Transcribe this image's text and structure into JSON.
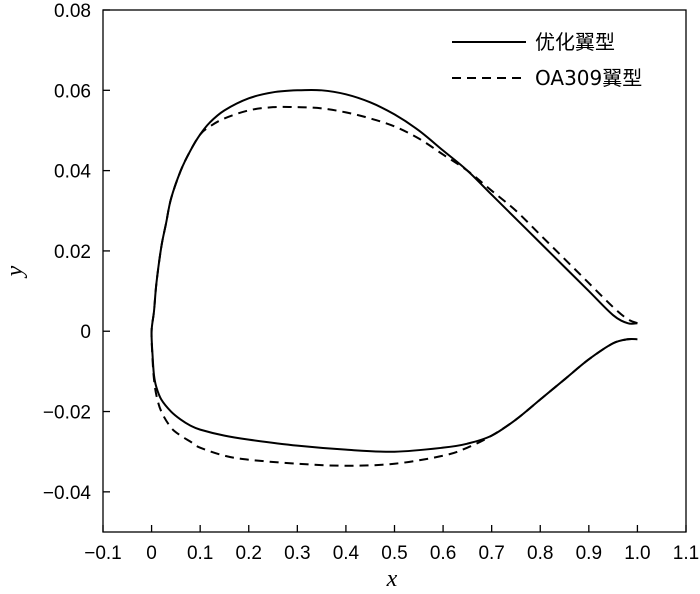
{
  "chart_data": {
    "type": "line",
    "xlabel": "x",
    "ylabel": "y",
    "xlim": [
      -0.1,
      1.1
    ],
    "ylim": [
      -0.05,
      0.08
    ],
    "x_ticks": [
      "−0.1",
      "0",
      "0.1",
      "0.2",
      "0.3",
      "0.4",
      "0.5",
      "0.6",
      "0.7",
      "0.8",
      "0.9",
      "1.0",
      "1.1"
    ],
    "x_tick_values": [
      -0.1,
      0,
      0.1,
      0.2,
      0.3,
      0.4,
      0.5,
      0.6,
      0.7,
      0.8,
      0.9,
      1.0,
      1.1
    ],
    "y_ticks": [
      "0.08",
      "0.06",
      "0.04",
      "0.02",
      "0",
      "−0.02",
      "−0.04"
    ],
    "y_tick_values": [
      0.08,
      0.06,
      0.04,
      0.02,
      0,
      -0.02,
      -0.04
    ],
    "grid": false,
    "legend_position": "top-right",
    "series": [
      {
        "name": "优化翼型",
        "style": "solid",
        "color": "#000000",
        "x": [
          1.0,
          0.98,
          0.95,
          0.9,
          0.85,
          0.8,
          0.75,
          0.7,
          0.65,
          0.6,
          0.55,
          0.5,
          0.45,
          0.4,
          0.35,
          0.3,
          0.25,
          0.2,
          0.15,
          0.12,
          0.1,
          0.08,
          0.06,
          0.04,
          0.03,
          0.02,
          0.01,
          0.005,
          0.0,
          0.002,
          0.005,
          0.01,
          0.02,
          0.04,
          0.06,
          0.08,
          0.1,
          0.15,
          0.2,
          0.3,
          0.4,
          0.5,
          0.6,
          0.65,
          0.7,
          0.75,
          0.8,
          0.85,
          0.9,
          0.95,
          0.98,
          1.0
        ],
        "y": [
          0.002,
          0.002,
          0.004,
          0.01,
          0.016,
          0.022,
          0.028,
          0.034,
          0.04,
          0.045,
          0.05,
          0.054,
          0.057,
          0.059,
          0.06,
          0.06,
          0.0595,
          0.058,
          0.055,
          0.052,
          0.049,
          0.045,
          0.04,
          0.033,
          0.027,
          0.021,
          0.012,
          0.005,
          0.0,
          -0.006,
          -0.011,
          -0.014,
          -0.017,
          -0.02,
          -0.022,
          -0.0235,
          -0.0245,
          -0.026,
          -0.027,
          -0.0285,
          -0.0295,
          -0.03,
          -0.029,
          -0.028,
          -0.026,
          -0.022,
          -0.017,
          -0.012,
          -0.007,
          -0.003,
          -0.002,
          -0.002
        ]
      },
      {
        "name": "OA309翼型",
        "style": "dashed",
        "color": "#000000",
        "x": [
          1.0,
          0.98,
          0.95,
          0.9,
          0.85,
          0.8,
          0.75,
          0.7,
          0.65,
          0.6,
          0.55,
          0.5,
          0.45,
          0.4,
          0.35,
          0.3,
          0.25,
          0.2,
          0.15,
          0.12,
          0.1,
          0.08,
          0.06,
          0.04,
          0.03,
          0.02,
          0.01,
          0.005,
          0.0,
          0.002,
          0.005,
          0.01,
          0.02,
          0.04,
          0.06,
          0.08,
          0.1,
          0.15,
          0.2,
          0.3,
          0.4,
          0.5,
          0.6,
          0.65,
          0.7,
          0.75,
          0.8,
          0.85,
          0.9,
          0.95,
          0.98,
          1.0
        ],
        "y": [
          0.002,
          0.003,
          0.006,
          0.012,
          0.018,
          0.024,
          0.03,
          0.035,
          0.04,
          0.044,
          0.048,
          0.051,
          0.053,
          0.0545,
          0.0555,
          0.0558,
          0.0558,
          0.055,
          0.053,
          0.051,
          0.049,
          0.045,
          0.04,
          0.033,
          0.027,
          0.021,
          0.012,
          0.005,
          0.0,
          -0.007,
          -0.012,
          -0.016,
          -0.02,
          -0.024,
          -0.026,
          -0.0275,
          -0.029,
          -0.031,
          -0.032,
          -0.033,
          -0.0335,
          -0.033,
          -0.031,
          -0.029,
          -0.026,
          -0.022,
          -0.017,
          -0.012,
          -0.007,
          -0.003,
          -0.002,
          -0.002
        ]
      }
    ]
  }
}
